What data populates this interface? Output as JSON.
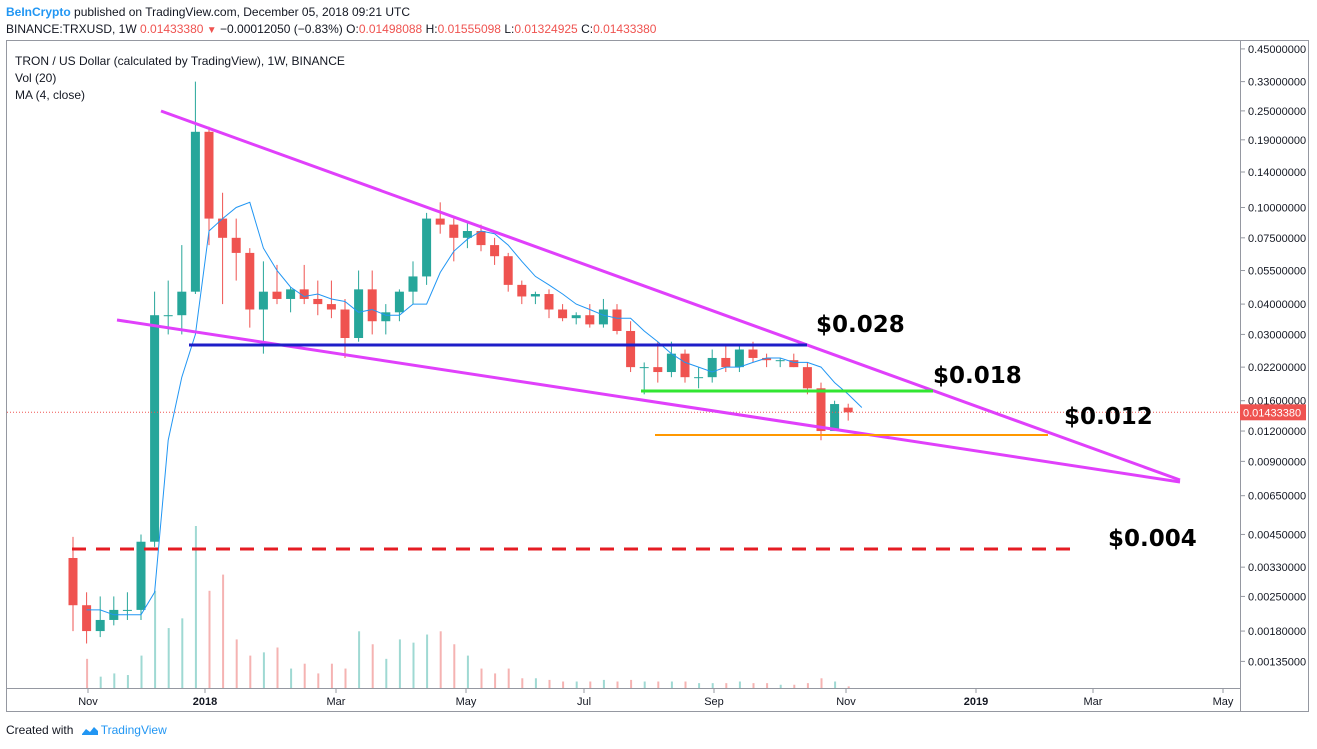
{
  "header": {
    "publisher": "BeInCrypto",
    "published_text": "published on TradingView.com, December 05, 2018 09:21 UTC",
    "symbol": "BINANCE:TRXUSD, 1W",
    "last": "0.01433380",
    "change": "−0.00012050 (−0.83%)",
    "o_label": "O:",
    "o": "0.01498088",
    "h_label": "H:",
    "h": "0.01555098",
    "l_label": "L:",
    "l": "0.01324925",
    "c_label": "C:",
    "c": "0.01433380"
  },
  "legend": {
    "title": "TRON / US Dollar (calculated by TradingView), 1W, BINANCE",
    "vol": "Vol (20)",
    "ma": "MA (4, close)"
  },
  "footer": {
    "created_with": "Created with",
    "brand": "TradingView"
  },
  "colors": {
    "up": "#26a69a",
    "down": "#ef5350",
    "ma": "#2196f3",
    "trend": "#e040fb",
    "blue_level": "#1e1ec8",
    "green_level": "#32e632",
    "orange_level": "#ff9800",
    "red_level": "#e51c23",
    "price_tag": "#ef5350"
  },
  "chart_data": {
    "type": "candlestick",
    "scale": "log",
    "ylim": [
      0.0011,
      0.46
    ],
    "x_ticks": [
      "Nov",
      "2018",
      "Mar",
      "May",
      "Jul",
      "Sep",
      "Nov",
      "2019",
      "Mar",
      "May"
    ],
    "y_ticks": [
      "0.45000000",
      "0.33000000",
      "0.25000000",
      "0.19000000",
      "0.14000000",
      "0.10000000",
      "0.07500000",
      "0.05500000",
      "0.04000000",
      "0.03000000",
      "0.02200000",
      "0.01600000",
      "0.01200000",
      "0.00900000",
      "0.00650000",
      "0.00450000",
      "0.00330000",
      "0.00250000",
      "0.00180000",
      "0.00135000"
    ],
    "last_price_label": "0.01433380",
    "annotations": [
      "$0.028",
      "$0.018",
      "$0.012",
      "$0.004"
    ],
    "candles": [
      {
        "o": 0.0036,
        "h": 0.0044,
        "l": 0.0018,
        "c": 0.0023,
        "v": 0
      },
      {
        "o": 0.0023,
        "h": 0.0026,
        "l": 0.0016,
        "c": 0.0018,
        "v": 0.18
      },
      {
        "o": 0.0018,
        "h": 0.0025,
        "l": 0.0017,
        "c": 0.002,
        "v": 0.07
      },
      {
        "o": 0.002,
        "h": 0.0025,
        "l": 0.0019,
        "c": 0.0022,
        "v": 0.09
      },
      {
        "o": 0.0022,
        "h": 0.0026,
        "l": 0.002,
        "c": 0.0022,
        "v": 0.08
      },
      {
        "o": 0.0022,
        "h": 0.0045,
        "l": 0.002,
        "c": 0.0042,
        "v": 0.2
      },
      {
        "o": 0.0042,
        "h": 0.045,
        "l": 0.004,
        "c": 0.036,
        "v": 0.6
      },
      {
        "o": 0.036,
        "h": 0.05,
        "l": 0.03,
        "c": 0.036,
        "v": 0.37
      },
      {
        "o": 0.036,
        "h": 0.07,
        "l": 0.03,
        "c": 0.045,
        "v": 0.43
      },
      {
        "o": 0.045,
        "h": 0.33,
        "l": 0.044,
        "c": 0.205,
        "v": 1.0
      },
      {
        "o": 0.205,
        "h": 0.215,
        "l": 0.07,
        "c": 0.09,
        "v": 0.6
      },
      {
        "o": 0.09,
        "h": 0.115,
        "l": 0.04,
        "c": 0.075,
        "v": 0.7
      },
      {
        "o": 0.075,
        "h": 0.09,
        "l": 0.05,
        "c": 0.065,
        "v": 0.3
      },
      {
        "o": 0.065,
        "h": 0.068,
        "l": 0.032,
        "c": 0.038,
        "v": 0.2
      },
      {
        "o": 0.038,
        "h": 0.06,
        "l": 0.025,
        "c": 0.045,
        "v": 0.22
      },
      {
        "o": 0.045,
        "h": 0.058,
        "l": 0.04,
        "c": 0.042,
        "v": 0.25
      },
      {
        "o": 0.042,
        "h": 0.047,
        "l": 0.037,
        "c": 0.046,
        "v": 0.12
      },
      {
        "o": 0.046,
        "h": 0.058,
        "l": 0.04,
        "c": 0.042,
        "v": 0.15
      },
      {
        "o": 0.042,
        "h": 0.05,
        "l": 0.036,
        "c": 0.04,
        "v": 0.09
      },
      {
        "o": 0.04,
        "h": 0.05,
        "l": 0.035,
        "c": 0.038,
        "v": 0.15
      },
      {
        "o": 0.038,
        "h": 0.042,
        "l": 0.024,
        "c": 0.029,
        "v": 0.12
      },
      {
        "o": 0.029,
        "h": 0.055,
        "l": 0.028,
        "c": 0.046,
        "v": 0.35
      },
      {
        "o": 0.046,
        "h": 0.055,
        "l": 0.03,
        "c": 0.034,
        "v": 0.27
      },
      {
        "o": 0.034,
        "h": 0.04,
        "l": 0.03,
        "c": 0.037,
        "v": 0.18
      },
      {
        "o": 0.037,
        "h": 0.046,
        "l": 0.034,
        "c": 0.045,
        "v": 0.3
      },
      {
        "o": 0.045,
        "h": 0.06,
        "l": 0.04,
        "c": 0.052,
        "v": 0.28
      },
      {
        "o": 0.052,
        "h": 0.095,
        "l": 0.048,
        "c": 0.09,
        "v": 0.33
      },
      {
        "o": 0.09,
        "h": 0.105,
        "l": 0.078,
        "c": 0.085,
        "v": 0.35
      },
      {
        "o": 0.085,
        "h": 0.09,
        "l": 0.06,
        "c": 0.075,
        "v": 0.27
      },
      {
        "o": 0.075,
        "h": 0.086,
        "l": 0.068,
        "c": 0.08,
        "v": 0.2
      },
      {
        "o": 0.08,
        "h": 0.085,
        "l": 0.066,
        "c": 0.07,
        "v": 0.12
      },
      {
        "o": 0.07,
        "h": 0.075,
        "l": 0.058,
        "c": 0.063,
        "v": 0.09
      },
      {
        "o": 0.063,
        "h": 0.065,
        "l": 0.045,
        "c": 0.048,
        "v": 0.12
      },
      {
        "o": 0.048,
        "h": 0.05,
        "l": 0.04,
        "c": 0.043,
        "v": 0.06
      },
      {
        "o": 0.043,
        "h": 0.045,
        "l": 0.04,
        "c": 0.044,
        "v": 0.06
      },
      {
        "o": 0.044,
        "h": 0.046,
        "l": 0.035,
        "c": 0.038,
        "v": 0.05
      },
      {
        "o": 0.038,
        "h": 0.04,
        "l": 0.034,
        "c": 0.035,
        "v": 0.04
      },
      {
        "o": 0.035,
        "h": 0.037,
        "l": 0.033,
        "c": 0.036,
        "v": 0.04
      },
      {
        "o": 0.036,
        "h": 0.04,
        "l": 0.032,
        "c": 0.033,
        "v": 0.04
      },
      {
        "o": 0.033,
        "h": 0.042,
        "l": 0.032,
        "c": 0.038,
        "v": 0.05
      },
      {
        "o": 0.038,
        "h": 0.04,
        "l": 0.03,
        "c": 0.031,
        "v": 0.04
      },
      {
        "o": 0.031,
        "h": 0.034,
        "l": 0.021,
        "c": 0.022,
        "v": 0.05
      },
      {
        "o": 0.022,
        "h": 0.023,
        "l": 0.017,
        "c": 0.022,
        "v": 0.04
      },
      {
        "o": 0.022,
        "h": 0.028,
        "l": 0.019,
        "c": 0.021,
        "v": 0.04
      },
      {
        "o": 0.021,
        "h": 0.028,
        "l": 0.02,
        "c": 0.025,
        "v": 0.04
      },
      {
        "o": 0.025,
        "h": 0.026,
        "l": 0.019,
        "c": 0.02,
        "v": 0.04
      },
      {
        "o": 0.02,
        "h": 0.022,
        "l": 0.018,
        "c": 0.02,
        "v": 0.03
      },
      {
        "o": 0.02,
        "h": 0.026,
        "l": 0.019,
        "c": 0.024,
        "v": 0.03
      },
      {
        "o": 0.024,
        "h": 0.027,
        "l": 0.021,
        "c": 0.022,
        "v": 0.03
      },
      {
        "o": 0.022,
        "h": 0.027,
        "l": 0.021,
        "c": 0.026,
        "v": 0.04
      },
      {
        "o": 0.026,
        "h": 0.028,
        "l": 0.023,
        "c": 0.024,
        "v": 0.03
      },
      {
        "o": 0.024,
        "h": 0.025,
        "l": 0.022,
        "c": 0.0235,
        "v": 0.03
      },
      {
        "o": 0.0235,
        "h": 0.024,
        "l": 0.022,
        "c": 0.0235,
        "v": 0.02
      },
      {
        "o": 0.0235,
        "h": 0.025,
        "l": 0.022,
        "c": 0.022,
        "v": 0.02
      },
      {
        "o": 0.022,
        "h": 0.023,
        "l": 0.017,
        "c": 0.018,
        "v": 0.03
      },
      {
        "o": 0.018,
        "h": 0.019,
        "l": 0.011,
        "c": 0.012,
        "v": 0.06
      },
      {
        "o": 0.012,
        "h": 0.016,
        "l": 0.012,
        "c": 0.0155,
        "v": 0.04
      },
      {
        "o": 0.01498,
        "h": 0.01555,
        "l": 0.01325,
        "c": 0.01433,
        "v": 0.01
      }
    ],
    "ma_series": [
      0.0022,
      0.0022,
      0.0021,
      0.0021,
      0.0021,
      0.0026,
      0.011,
      0.02,
      0.03,
      0.08,
      0.09,
      0.1,
      0.105,
      0.068,
      0.055,
      0.047,
      0.043,
      0.044,
      0.042,
      0.041,
      0.037,
      0.038,
      0.036,
      0.036,
      0.04,
      0.04,
      0.054,
      0.066,
      0.074,
      0.08,
      0.078,
      0.07,
      0.06,
      0.052,
      0.048,
      0.044,
      0.04,
      0.038,
      0.036,
      0.035,
      0.035,
      0.031,
      0.028,
      0.025,
      0.023,
      0.022,
      0.021,
      0.022,
      0.022,
      0.023,
      0.024,
      0.024,
      0.023,
      0.023,
      0.022,
      0.019,
      0.017,
      0.015
    ]
  }
}
